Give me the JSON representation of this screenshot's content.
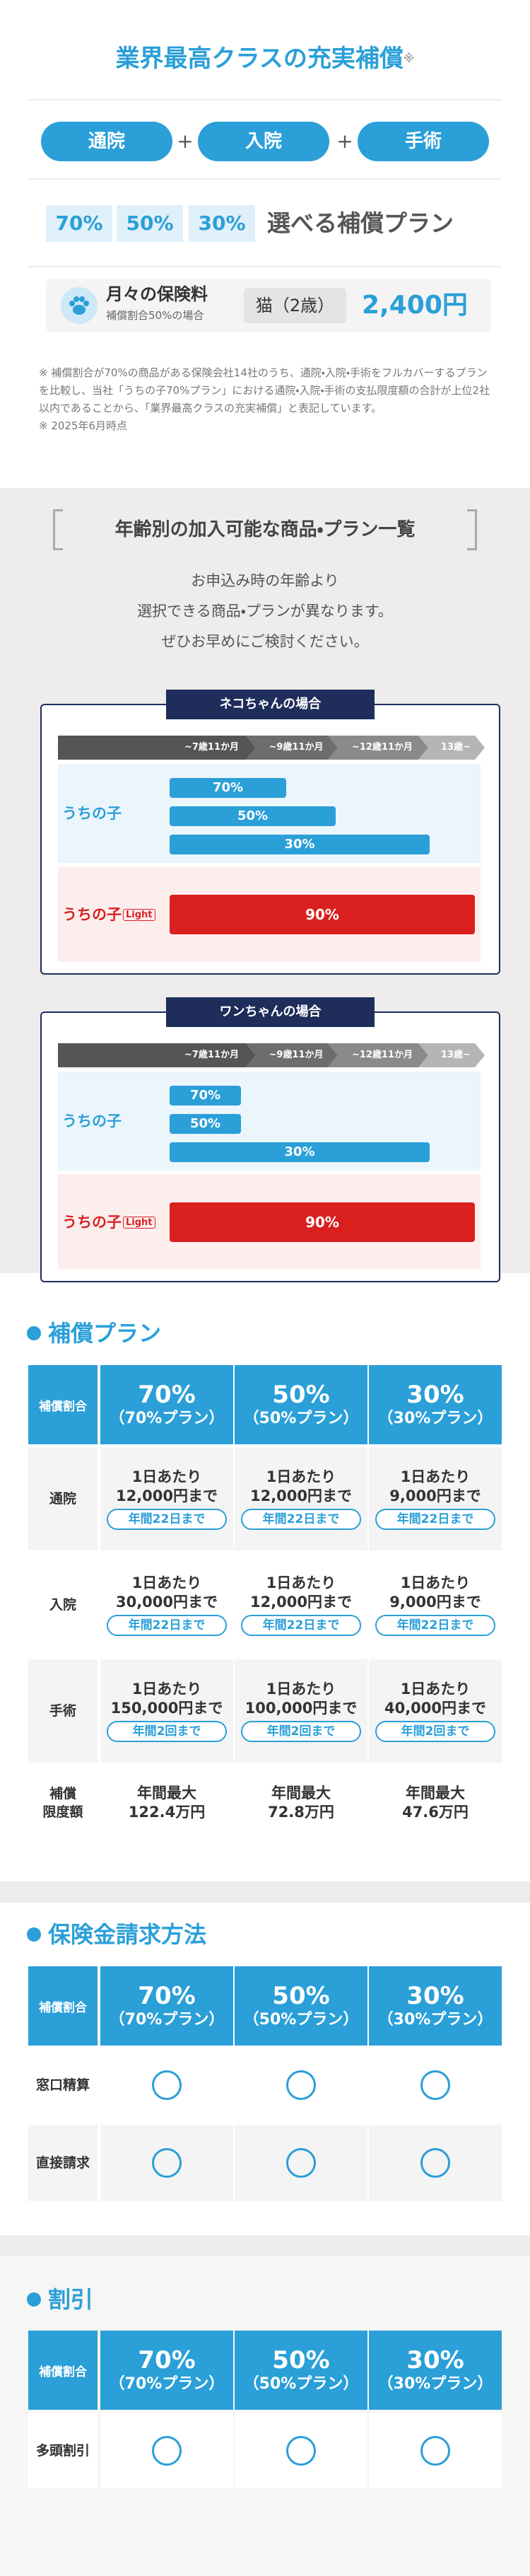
{
  "header": {
    "title": "業界最高クラスの充実補償",
    "title_mark": "※",
    "coverage": [
      "通院",
      "入院",
      "手術"
    ],
    "plus": "+",
    "plans": [
      "70%",
      "50%",
      "30%"
    ],
    "plans_caption": "選べる補償プラン",
    "price_label": "月々の保険料",
    "price_note": "補償割合50%の場合",
    "price_pet": "猫（2歳）",
    "price": "2,400円"
  },
  "notes": [
    "※ 補償割合が70%の商品がある保険会社14社のうち、通院・入院・手術をフルカバーするプランを比較し、当社「うちの子70%プラン」における通院・入院・手術の支払限度額の合計が上位2社以内であることから、「業界最高クラスの充実補償」と表記しています。",
    "※ 2025年6月時点"
  ],
  "age_section": {
    "title": "年齢別の加入可能な商品・プラン一覧",
    "lead": [
      "お申込み時の年齢より",
      "選択できる商品・プランが異なります。",
      "ぜひお早めにご検討ください。"
    ],
    "cat": {
      "title": "ネコちゃんの場合",
      "ages": [
        "~7歳11か月",
        "~9歳11か月",
        "~12歳11か月",
        "13歳~"
      ],
      "products": [
        {
          "name": "うちの子",
          "plans": [
            "70%",
            "50%",
            "30%"
          ]
        },
        {
          "name": "うちの子",
          "badge": "Light",
          "plans": [
            "90%"
          ]
        }
      ]
    },
    "dog": {
      "title": "ワンちゃんの場合",
      "ages": [
        "~7歳11か月",
        "~9歳11か月",
        "~12歳11か月",
        "13歳~"
      ],
      "products": [
        {
          "name": "うちの子",
          "plans": [
            "70%",
            "50%",
            "30%"
          ]
        },
        {
          "name": "うちの子",
          "badge": "Light",
          "plans": [
            "90%"
          ]
        }
      ]
    }
  },
  "plan_header": {
    "label": "補償割合",
    "plans": [
      {
        "rate": "70%",
        "name": "（70%プラン）"
      },
      {
        "rate": "50%",
        "name": "（50%プラン）"
      },
      {
        "rate": "30%",
        "name": "（30%プラン）"
      }
    ]
  },
  "coverage": {
    "title": "補償プラン",
    "rows": [
      {
        "label": [
          "通院"
        ],
        "cells": [
          {
            "lines": [
              "1日あたり",
              "12,000円まで"
            ],
            "limit": "年間22日まで"
          },
          {
            "lines": [
              "1日あたり",
              "12,000円まで"
            ],
            "limit": "年間22日まで"
          },
          {
            "lines": [
              "1日あたり",
              "9,000円まで"
            ],
            "limit": "年間22日まで"
          }
        ]
      },
      {
        "label": [
          "入院"
        ],
        "cells": [
          {
            "lines": [
              "1日あたり",
              "30,000円まで"
            ],
            "limit": "年間22日まで"
          },
          {
            "lines": [
              "1日あたり",
              "12,000円まで"
            ],
            "limit": "年間22日まで"
          },
          {
            "lines": [
              "1日あたり",
              "9,000円まで"
            ],
            "limit": "年間22日まで"
          }
        ]
      },
      {
        "label": [
          "手術"
        ],
        "cells": [
          {
            "lines": [
              "1日あたり",
              "150,000円まで"
            ],
            "limit": "年間2回まで"
          },
          {
            "lines": [
              "1日あたり",
              "100,000円まで"
            ],
            "limit": "年間2回まで"
          },
          {
            "lines": [
              "1日あたり",
              "40,000円まで"
            ],
            "limit": "年間2回まで"
          }
        ]
      },
      {
        "label": [
          "補償",
          "限度額"
        ],
        "cells": [
          {
            "lines": [
              "年間最大",
              "122.4万円"
            ]
          },
          {
            "lines": [
              "年間最大",
              "72.8万円"
            ]
          },
          {
            "lines": [
              "年間最大",
              "47.6万円"
            ]
          }
        ]
      }
    ]
  },
  "claim": {
    "title": "保険金請求方法",
    "rows": [
      {
        "label": "窓口精算"
      },
      {
        "label": "直接請求"
      }
    ]
  },
  "discount": {
    "title": "割引",
    "rows": [
      {
        "label": "多頭割引"
      }
    ]
  }
}
